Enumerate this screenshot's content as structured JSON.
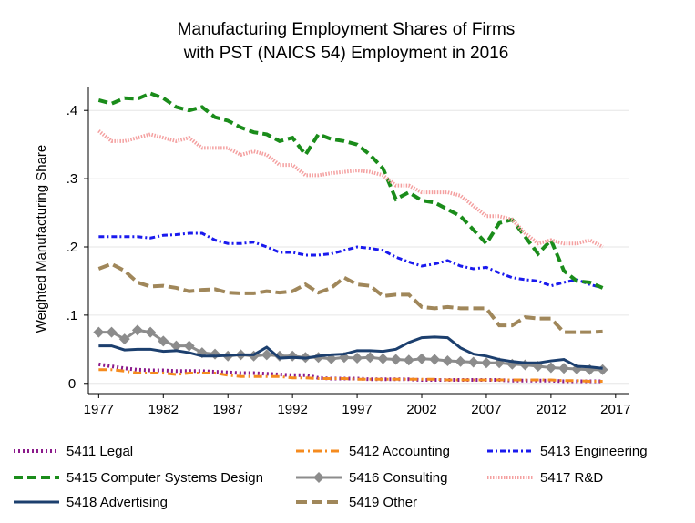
{
  "chart_data": {
    "type": "line",
    "title": [
      "Manufacturing Employment Shares of Firms",
      "with PST (NAICS 54) Employment in 2016"
    ],
    "y_label": "Weighted Manufacturing Share",
    "x": [
      1977,
      1978,
      1979,
      1980,
      1981,
      1982,
      1983,
      1984,
      1985,
      1986,
      1987,
      1988,
      1989,
      1990,
      1991,
      1992,
      1993,
      1994,
      1995,
      1996,
      1997,
      1998,
      1999,
      2000,
      2001,
      2002,
      2003,
      2004,
      2005,
      2006,
      2007,
      2008,
      2009,
      2010,
      2011,
      2012,
      2013,
      2014,
      2015,
      2016
    ],
    "xlim": [
      1976.2,
      2018
    ],
    "xticks": [
      1977,
      1982,
      1987,
      1992,
      1997,
      2002,
      2007,
      2012,
      2017
    ],
    "ylim": [
      -0.015,
      0.435
    ],
    "yticks": [
      0,
      {
        "value": 0.1,
        "label": ".1"
      },
      {
        "value": 0.2,
        "label": ".2"
      },
      {
        "value": 0.3,
        "label": ".3"
      },
      {
        "value": 0.4,
        "label": ".4"
      }
    ],
    "grid": true,
    "series": [
      {
        "name": "5411 Legal",
        "color": "#8b1a8b",
        "dash": "2,3",
        "width": 4,
        "values": [
          0.028,
          0.025,
          0.022,
          0.02,
          0.019,
          0.019,
          0.018,
          0.018,
          0.018,
          0.017,
          0.016,
          0.015,
          0.015,
          0.014,
          0.013,
          0.012,
          0.012,
          0.008,
          0.007,
          0.007,
          0.007,
          0.006,
          0.006,
          0.006,
          0.006,
          0.005,
          0.005,
          0.005,
          0.005,
          0.005,
          0.005,
          0.005,
          0.004,
          0.004,
          0.004,
          0.004,
          0.003,
          0.003,
          0.003,
          0.003
        ]
      },
      {
        "name": "5412 Accounting",
        "color": "#f58b1f",
        "dash": "9,4,2,4",
        "width": 3,
        "values": [
          0.02,
          0.02,
          0.018,
          0.015,
          0.015,
          0.015,
          0.013,
          0.015,
          0.015,
          0.015,
          0.012,
          0.01,
          0.01,
          0.01,
          0.01,
          0.008,
          0.008,
          0.007,
          0.007,
          0.007,
          0.006,
          0.006,
          0.006,
          0.006,
          0.006,
          0.006,
          0.006,
          0.005,
          0.005,
          0.005,
          0.005,
          0.005,
          0.005,
          0.005,
          0.005,
          0.005,
          0.004,
          0.004,
          0.003,
          0.003
        ]
      },
      {
        "name": "5413 Engineering",
        "color": "#1a1aee",
        "dash": "6,3,2,3",
        "width": 3,
        "values": [
          0.215,
          0.215,
          0.215,
          0.215,
          0.213,
          0.217,
          0.218,
          0.22,
          0.22,
          0.21,
          0.205,
          0.205,
          0.207,
          0.2,
          0.192,
          0.192,
          0.188,
          0.188,
          0.19,
          0.195,
          0.2,
          0.198,
          0.195,
          0.185,
          0.178,
          0.172,
          0.175,
          0.18,
          0.172,
          0.168,
          0.17,
          0.162,
          0.155,
          0.152,
          0.15,
          0.143,
          0.148,
          0.152,
          0.145,
          0.14
        ]
      },
      {
        "name": "5415 Computer Systems Design",
        "color": "#1a8c1a",
        "dash": "10,5",
        "width": 4,
        "values": [
          0.415,
          0.41,
          0.418,
          0.417,
          0.425,
          0.418,
          0.405,
          0.4,
          0.405,
          0.39,
          0.385,
          0.375,
          0.368,
          0.365,
          0.355,
          0.36,
          0.335,
          0.365,
          0.358,
          0.355,
          0.35,
          0.335,
          0.315,
          0.27,
          0.28,
          0.268,
          0.265,
          0.255,
          0.245,
          0.225,
          0.205,
          0.235,
          0.24,
          0.215,
          0.19,
          0.21,
          0.165,
          0.15,
          0.148,
          0.14
        ]
      },
      {
        "name": "5416 Consulting",
        "color": "#8c8c8c",
        "dash": "",
        "width": 3,
        "marker": "diamond",
        "values": [
          0.075,
          0.075,
          0.065,
          0.078,
          0.075,
          0.062,
          0.055,
          0.055,
          0.045,
          0.043,
          0.04,
          0.042,
          0.04,
          0.042,
          0.04,
          0.04,
          0.038,
          0.038,
          0.036,
          0.038,
          0.037,
          0.038,
          0.036,
          0.035,
          0.034,
          0.036,
          0.035,
          0.033,
          0.032,
          0.031,
          0.03,
          0.03,
          0.028,
          0.027,
          0.025,
          0.023,
          0.022,
          0.021,
          0.02,
          0.02
        ]
      },
      {
        "name": "5417 R&D",
        "color": "#f4a0a0",
        "dash": "1.5,1.5",
        "width": 4,
        "values": [
          0.37,
          0.355,
          0.355,
          0.36,
          0.365,
          0.36,
          0.355,
          0.36,
          0.345,
          0.345,
          0.345,
          0.335,
          0.34,
          0.335,
          0.32,
          0.32,
          0.305,
          0.305,
          0.308,
          0.31,
          0.312,
          0.31,
          0.305,
          0.29,
          0.29,
          0.28,
          0.28,
          0.28,
          0.275,
          0.26,
          0.245,
          0.245,
          0.24,
          0.22,
          0.205,
          0.21,
          0.205,
          0.205,
          0.21,
          0.2
        ]
      },
      {
        "name": "5418 Advertising",
        "color": "#1c3f6e",
        "dash": "",
        "width": 3,
        "values": [
          0.055,
          0.055,
          0.049,
          0.05,
          0.05,
          0.047,
          0.048,
          0.045,
          0.04,
          0.04,
          0.041,
          0.042,
          0.042,
          0.053,
          0.037,
          0.038,
          0.037,
          0.04,
          0.042,
          0.043,
          0.048,
          0.048,
          0.047,
          0.05,
          0.06,
          0.067,
          0.068,
          0.067,
          0.052,
          0.043,
          0.04,
          0.035,
          0.032,
          0.03,
          0.03,
          0.033,
          0.035,
          0.025,
          0.024,
          0.022
        ]
      },
      {
        "name": "5419 Other",
        "color": "#a0875a",
        "dash": "12,5",
        "width": 4,
        "values": [
          0.168,
          0.175,
          0.165,
          0.148,
          0.142,
          0.143,
          0.14,
          0.135,
          0.137,
          0.138,
          0.133,
          0.132,
          0.132,
          0.135,
          0.133,
          0.135,
          0.145,
          0.133,
          0.14,
          0.155,
          0.145,
          0.143,
          0.128,
          0.13,
          0.13,
          0.112,
          0.11,
          0.112,
          0.11,
          0.11,
          0.11,
          0.085,
          0.085,
          0.097,
          0.095,
          0.095,
          0.075,
          0.075,
          0.075,
          0.076
        ]
      }
    ]
  }
}
